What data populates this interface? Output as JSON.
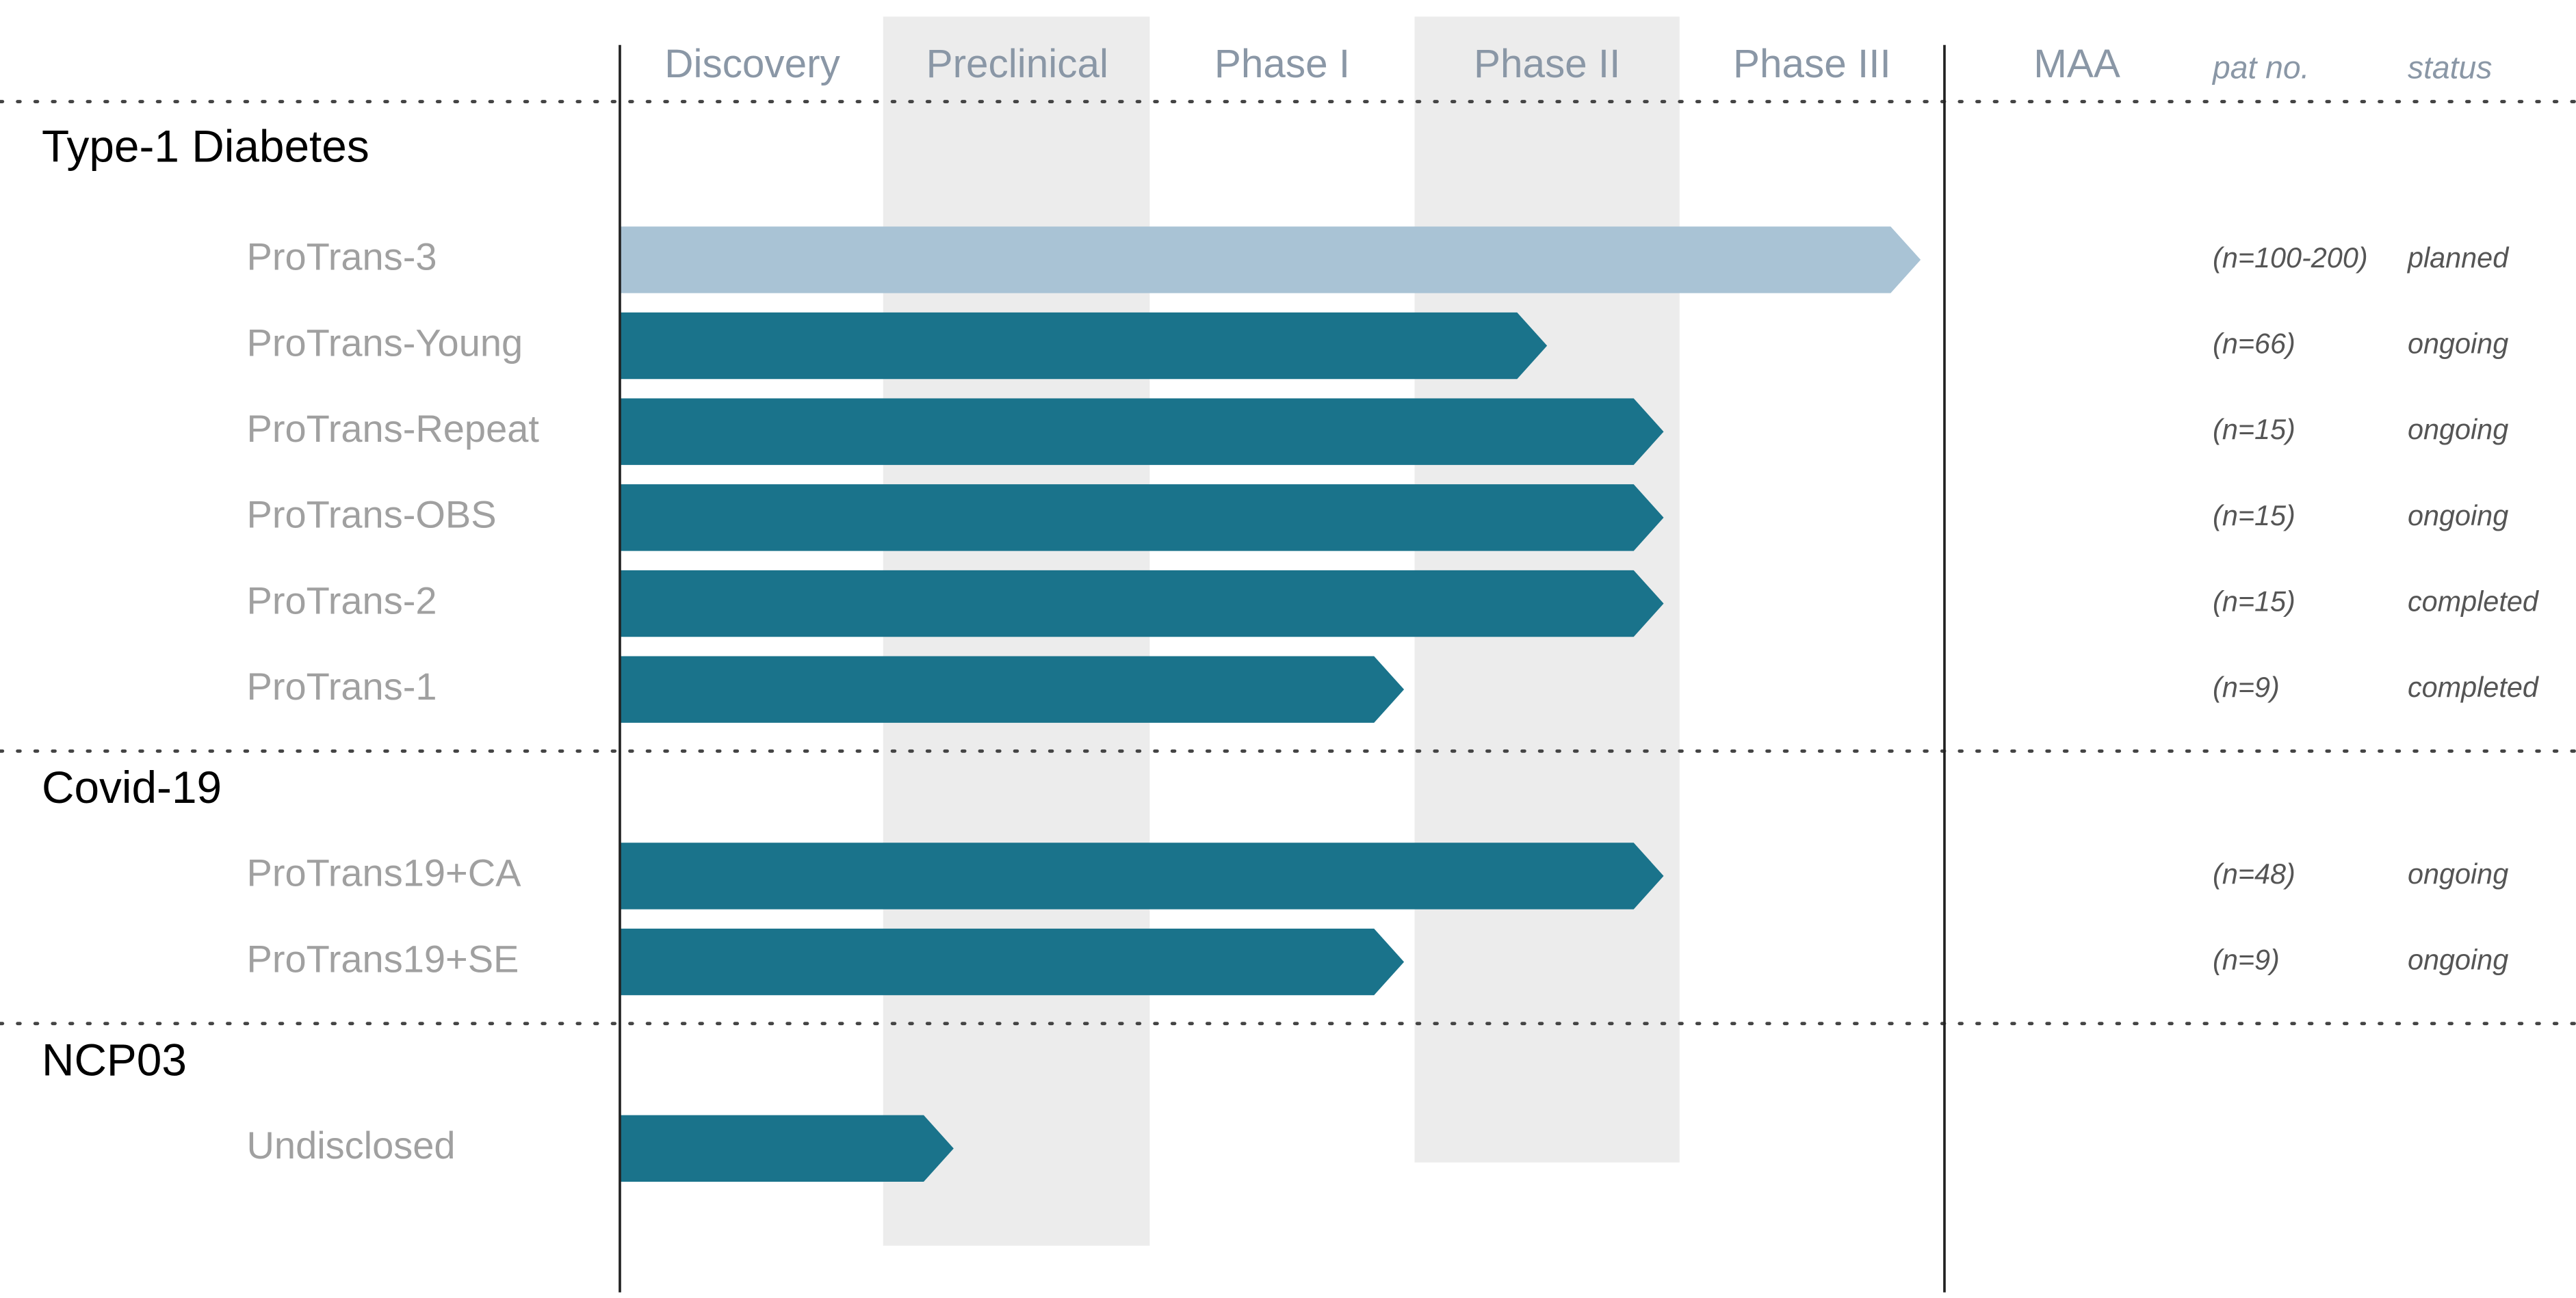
{
  "chart_data": {
    "type": "bar",
    "orientation": "horizontal",
    "phases": [
      "Discovery",
      "Preclinical",
      "Phase I",
      "Phase II",
      "Phase III",
      "MAA"
    ],
    "columns": [
      "pat no.",
      "status"
    ],
    "xlim": [
      0,
      6
    ],
    "groups": [
      {
        "name": "Type-1 Diabetes",
        "rows": [
          {
            "label": "ProTrans-3",
            "value": 4.91,
            "color": "#a9c3d5",
            "patients": "(n=100-200)",
            "status": "planned"
          },
          {
            "label": "ProTrans-Young",
            "value": 3.5,
            "color": "#1a738b",
            "patients": "(n=66)",
            "status": "ongoing"
          },
          {
            "label": "ProTrans-Repeat",
            "value": 3.94,
            "color": "#1a738b",
            "patients": "(n=15)",
            "status": "ongoing"
          },
          {
            "label": "ProTrans-OBS",
            "value": 3.94,
            "color": "#1a738b",
            "patients": "(n=15)",
            "status": "ongoing"
          },
          {
            "label": "ProTrans-2",
            "value": 3.94,
            "color": "#1a738b",
            "patients": "(n=15)",
            "status": "completed"
          },
          {
            "label": "ProTrans-1",
            "value": 2.96,
            "color": "#1a738b",
            "patients": "(n=9)",
            "status": "completed"
          }
        ]
      },
      {
        "name": "Covid-19",
        "rows": [
          {
            "label": "ProTrans19+CA",
            "value": 3.94,
            "color": "#1a738b",
            "patients": "(n=48)",
            "status": "ongoing"
          },
          {
            "label": "ProTrans19+SE",
            "value": 2.96,
            "color": "#1a738b",
            "patients": "(n=9)",
            "status": "ongoing"
          }
        ]
      },
      {
        "name": "NCP03",
        "rows": [
          {
            "label": "Undisclosed",
            "value": 1.26,
            "color": "#1a738b"
          }
        ]
      }
    ]
  }
}
